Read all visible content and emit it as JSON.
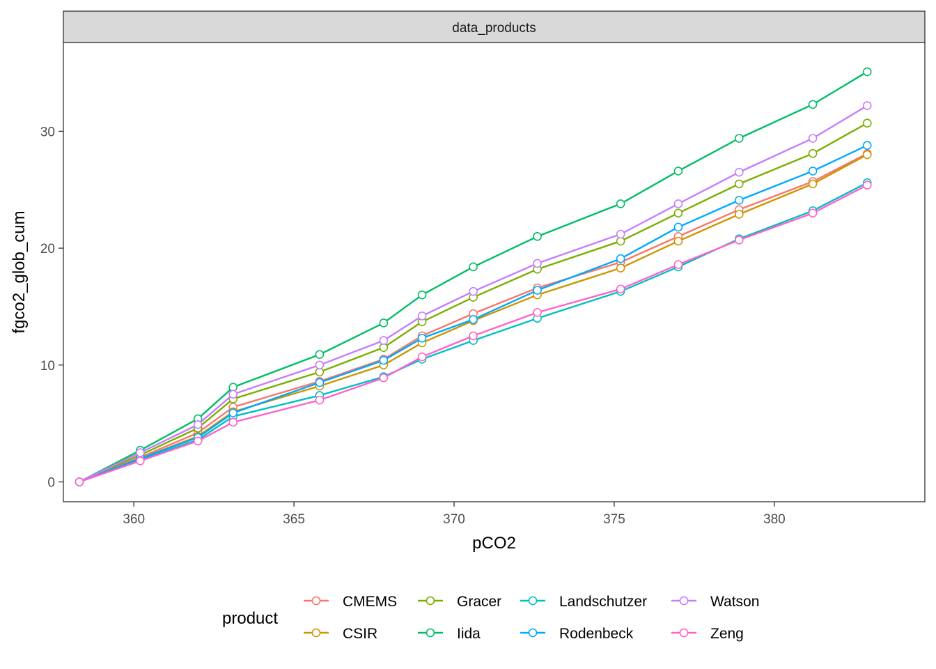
{
  "chart_data": {
    "type": "line",
    "facet_label": "data_products",
    "xlabel": "pCO2",
    "ylabel": "fgco2_glob_cum",
    "xlim": [
      357.8,
      384.7
    ],
    "ylim": [
      -1.7,
      37.6
    ],
    "x_ticks": [
      360,
      365,
      370,
      375,
      380
    ],
    "y_ticks": [
      0,
      10,
      20,
      30
    ],
    "grid": false,
    "legend_title": "product",
    "legend_position": "bottom",
    "x": [
      358.3,
      360.2,
      362.0,
      363.1,
      365.8,
      367.8,
      369.0,
      370.6,
      372.6,
      375.2,
      377.0,
      378.9,
      381.2,
      382.9
    ],
    "series": [
      {
        "name": "CMEMS",
        "color": "#F8766D",
        "values": [
          0,
          2.1,
          4.2,
          6.4,
          8.6,
          10.5,
          12.5,
          14.4,
          16.6,
          18.8,
          21.0,
          23.3,
          25.7,
          28.1
        ]
      },
      {
        "name": "CSIR",
        "color": "#CD9600",
        "values": [
          0,
          2.0,
          3.9,
          6.0,
          8.2,
          10.0,
          11.9,
          13.8,
          16.0,
          18.3,
          20.6,
          22.9,
          25.5,
          28.0
        ]
      },
      {
        "name": "Gracer",
        "color": "#7CAE00",
        "values": [
          0,
          2.3,
          4.6,
          7.1,
          9.4,
          11.5,
          13.7,
          15.8,
          18.2,
          20.6,
          23.0,
          25.5,
          28.1,
          30.7
        ]
      },
      {
        "name": "Iida",
        "color": "#00BE67",
        "values": [
          0,
          2.7,
          5.4,
          8.1,
          10.9,
          13.6,
          16.0,
          18.4,
          21.0,
          23.8,
          26.6,
          29.4,
          32.3,
          35.1
        ]
      },
      {
        "name": "Landschutzer",
        "color": "#00BFC4",
        "values": [
          0,
          1.9,
          3.6,
          5.6,
          7.4,
          9.0,
          10.5,
          12.1,
          14.0,
          16.3,
          18.4,
          20.8,
          23.2,
          25.6
        ]
      },
      {
        "name": "Rodenbeck",
        "color": "#00A9FF",
        "values": [
          0,
          2.0,
          3.8,
          5.9,
          8.5,
          10.4,
          12.3,
          13.9,
          16.4,
          19.1,
          21.8,
          24.1,
          26.6,
          28.8
        ]
      },
      {
        "name": "Watson",
        "color": "#C77CFF",
        "values": [
          0,
          2.5,
          4.9,
          7.5,
          10.0,
          12.1,
          14.2,
          16.3,
          18.7,
          21.2,
          23.8,
          26.5,
          29.4,
          32.2
        ]
      },
      {
        "name": "Zeng",
        "color": "#FF61CC",
        "values": [
          0,
          1.8,
          3.5,
          5.1,
          7.0,
          8.9,
          10.7,
          12.5,
          14.5,
          16.5,
          18.6,
          20.7,
          23.0,
          25.4
        ]
      }
    ]
  }
}
